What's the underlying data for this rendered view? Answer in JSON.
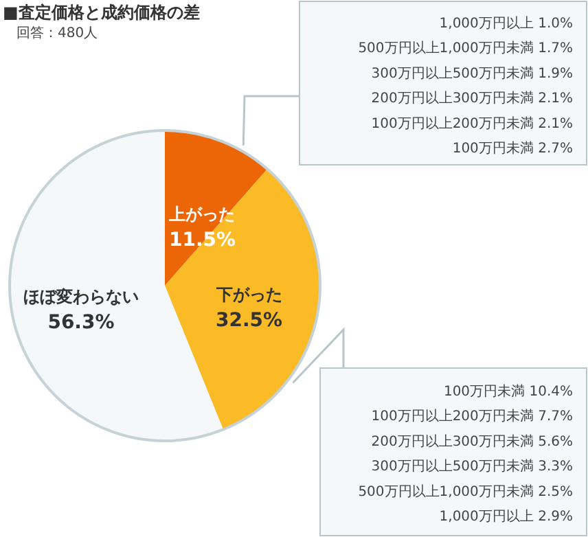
{
  "chart_data": {
    "type": "pie",
    "title": "■査定価格と成約価格の差",
    "subtitle": "回答：480人",
    "categories": [
      "上がった",
      "下がった",
      "ほぼ変わらない"
    ],
    "values": [
      11.5,
      32.5,
      56.3
    ],
    "value_labels": [
      "11.5%",
      "32.5%",
      "56.3%"
    ],
    "colors": [
      "#ec6608",
      "#fbbb27",
      "#f4f8fa"
    ],
    "annotations": [
      {
        "text": "1,000万円以上 1.0%",
        "x": "上がった"
      },
      {
        "text": "500万円以上1,000万円未満 1.7%",
        "x": "上がった"
      },
      {
        "text": "300万円以上500万円未満 1.9%",
        "x": "上がった"
      },
      {
        "text": "200万円以上300万円未満 2.1%",
        "x": "上がった"
      },
      {
        "text": "100万円以上200万円未満 2.1%",
        "x": "上がった"
      },
      {
        "text": "100万円未満 2.7%",
        "x": "上がった"
      },
      {
        "text": "100万円未満 10.4%",
        "x": "下がった"
      },
      {
        "text": "100万円以上200万円未満 7.7%",
        "x": "下がった"
      },
      {
        "text": "200万円以上300万円未満 5.6%",
        "x": "下がった"
      },
      {
        "text": "300万円以上500万円未満 3.3%",
        "x": "下がった"
      },
      {
        "text": "500万円以上1,000万円未満 2.5%",
        "x": "下がった"
      },
      {
        "text": "1,000万円以上 2.9%",
        "x": "下がった"
      }
    ]
  }
}
